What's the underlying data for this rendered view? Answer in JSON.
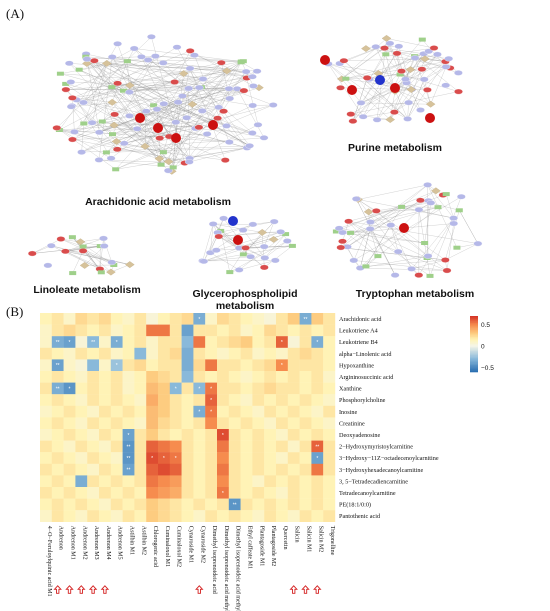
{
  "panels": {
    "a": "(A)",
    "b": "(B)"
  },
  "networks": [
    {
      "id": "arachidonic",
      "title": "Arachidonic acid metabolism"
    },
    {
      "id": "purine",
      "title": "Purine  metabolism"
    },
    {
      "id": "linoleate",
      "title": "Linoleate  metabolism"
    },
    {
      "id": "glycero",
      "title": "Glycerophospholipid\nmetabolism"
    },
    {
      "id": "tryptophan",
      "title": "Tryptophan metabolism"
    }
  ],
  "colors": {
    "metabolite_node": "#d94c4c",
    "gene_node": "#b5b8e8",
    "compound_node": "#d6c29a",
    "pathway_node": "#9fd08a",
    "hub_red": "#cc1111",
    "hub_blue": "#2233cc"
  },
  "chart_data": {
    "type": "heatmap",
    "rows": [
      "Arachidonic acid",
      "Leukotriene A4",
      "Leukotriene B4",
      "alpha−Linolenic acid",
      "Hypoxanthine",
      "Argininosuccinic acid",
      "Xanthine",
      "Phosphorylcholine",
      "Inosine",
      "Creatinine",
      "Deoxyadenosine",
      "2−Hydroxymyristoylcarnitine",
      "3−Hydroxy−11Z−octadecenoylcarnitine",
      "3−Hydroxyhexadecanoylcarnitine",
      "3, 5−Tetradecadiencarnitine",
      "Tetradecanoylcarnitine",
      "PE(18:1/0:0)",
      "Pantothenic acid"
    ],
    "columns": [
      "4−O−Feruloylquinic acid M1",
      "Andrenon",
      "Andrenon M1",
      "Andrenon M2",
      "Andrenon M3",
      "Andrenon M4",
      "Andrenon M5",
      "Astilbin M1",
      "Astilbin M2",
      "Chlorogenic acid",
      "Cuminaloxol M1",
      "Cuminaloxol M2",
      "Cynaroside M1",
      "Cynaroside M2",
      "Dimethyl isoprenoideic acid",
      "Dimethyl isoprenoideic acid methyl ester",
      "Dimethyl isoprenoideic acid methyl ester M1",
      "Ethyl caffeate M1",
      "Plantagoside M1",
      "Plantagoside M2",
      "Quercetin",
      "Salicin",
      "Salicin M1",
      "Salicin M2",
      "Trigonelline"
    ],
    "arrow_columns": [
      1,
      2,
      3,
      4,
      5,
      13,
      21,
      22,
      23
    ],
    "values": [
      [
        0.15,
        0.2,
        0.1,
        0.25,
        0.2,
        0.25,
        0.15,
        0.1,
        0.2,
        0.05,
        0.15,
        0.2,
        0.25,
        -0.35,
        0.1,
        0.25,
        0.2,
        0.15,
        0.1,
        0.05,
        0.2,
        0.3,
        -0.35,
        0.3,
        0.2
      ],
      [
        0.1,
        0.2,
        0.25,
        0.2,
        0.15,
        0.2,
        0.1,
        0.15,
        0.2,
        0.55,
        0.55,
        0.2,
        -0.4,
        0.2,
        0.2,
        0.15,
        0.2,
        0.1,
        0.15,
        0.25,
        0.2,
        0.15,
        0.2,
        0.15,
        0.2
      ],
      [
        0.1,
        -0.35,
        -0.4,
        0.05,
        -0.3,
        0.1,
        -0.35,
        0.15,
        0.2,
        0.1,
        0.2,
        0.2,
        -0.3,
        0.55,
        0.15,
        0.2,
        0.25,
        0.3,
        0.15,
        0.2,
        0.6,
        0.05,
        0.2,
        -0.35,
        0.15
      ],
      [
        0.2,
        0.15,
        0.1,
        0.2,
        0.15,
        0.2,
        0.1,
        0.15,
        -0.3,
        0.1,
        0.2,
        0.25,
        -0.35,
        0.2,
        0.15,
        0.1,
        0.15,
        0.2,
        0.1,
        0.15,
        0.1,
        0.2,
        0.25,
        0.2,
        0.15
      ],
      [
        0.1,
        -0.4,
        0.1,
        0.05,
        -0.3,
        0.1,
        -0.25,
        0.2,
        0.25,
        0.15,
        0.2,
        0.2,
        -0.35,
        0.25,
        0.55,
        0.2,
        0.2,
        0.15,
        0.2,
        0.25,
        0.5,
        0.2,
        0.2,
        0.2,
        0.15
      ],
      [
        0.15,
        0.2,
        0.15,
        0.1,
        0.2,
        0.15,
        0.2,
        0.1,
        0.15,
        0.3,
        0.25,
        0.2,
        -0.3,
        0.2,
        0.15,
        0.2,
        0.15,
        0.1,
        0.15,
        0.2,
        0.15,
        0.2,
        0.15,
        0.2,
        0.1
      ],
      [
        0.2,
        -0.35,
        -0.45,
        0.15,
        0.2,
        0.15,
        0.2,
        0.1,
        0.15,
        0.35,
        0.3,
        -0.3,
        0.2,
        -0.3,
        0.55,
        0.2,
        0.2,
        0.15,
        0.2,
        0.25,
        0.2,
        0.2,
        0.15,
        0.2,
        0.15
      ],
      [
        0.15,
        0.2,
        0.15,
        0.1,
        0.2,
        0.15,
        0.2,
        0.15,
        0.1,
        0.4,
        0.3,
        0.2,
        0.15,
        0.2,
        0.6,
        0.2,
        0.15,
        0.1,
        0.2,
        0.15,
        0.2,
        0.15,
        0.2,
        0.15,
        0.1
      ],
      [
        0.1,
        0.15,
        0.2,
        0.15,
        0.1,
        0.2,
        0.15,
        0.2,
        0.15,
        0.35,
        0.3,
        0.2,
        0.15,
        -0.35,
        0.55,
        0.15,
        0.2,
        0.15,
        0.1,
        0.2,
        0.15,
        0.2,
        0.15,
        0.1,
        0.2
      ],
      [
        0.15,
        0.2,
        0.15,
        0.1,
        0.2,
        0.15,
        0.2,
        0.15,
        0.1,
        0.35,
        0.25,
        0.2,
        0.15,
        0.2,
        0.5,
        0.2,
        0.15,
        0.2,
        0.15,
        0.1,
        0.2,
        0.15,
        0.2,
        0.15,
        0.1
      ],
      [
        0.1,
        0.15,
        0.2,
        0.15,
        0.1,
        0.2,
        0.15,
        -0.4,
        0.2,
        0.3,
        0.2,
        0.15,
        0.2,
        0.15,
        0.2,
        0.65,
        0.2,
        0.15,
        0.2,
        0.15,
        0.1,
        0.2,
        0.15,
        0.2,
        0.15
      ],
      [
        0.2,
        0.15,
        0.1,
        0.2,
        0.15,
        0.1,
        0.2,
        -0.45,
        0.2,
        0.6,
        0.55,
        0.5,
        0.2,
        0.15,
        0.2,
        0.55,
        0.2,
        0.15,
        0.2,
        0.15,
        0.2,
        0.1,
        0.2,
        0.6,
        0.2
      ],
      [
        0.15,
        0.2,
        0.15,
        0.1,
        0.2,
        0.15,
        0.1,
        -0.45,
        0.2,
        0.65,
        0.6,
        0.55,
        0.2,
        0.15,
        0.2,
        0.5,
        0.2,
        0.15,
        0.2,
        0.15,
        0.1,
        0.2,
        0.15,
        -0.4,
        0.2
      ],
      [
        0.2,
        0.15,
        0.2,
        0.15,
        0.1,
        0.2,
        0.15,
        -0.4,
        0.2,
        0.6,
        0.65,
        0.6,
        0.2,
        0.15,
        0.2,
        0.55,
        0.2,
        0.15,
        0.2,
        0.15,
        0.2,
        0.15,
        0.2,
        0.55,
        0.2
      ],
      [
        0.15,
        0.2,
        0.15,
        -0.35,
        0.2,
        0.15,
        0.2,
        0.15,
        0.2,
        0.55,
        0.5,
        0.45,
        0.2,
        0.15,
        0.2,
        0.5,
        0.2,
        0.15,
        0.1,
        0.2,
        0.15,
        0.2,
        0.15,
        0.2,
        0.15
      ],
      [
        0.2,
        0.15,
        0.2,
        0.15,
        0.1,
        0.2,
        0.15,
        0.2,
        0.15,
        0.5,
        0.45,
        0.4,
        0.2,
        0.15,
        0.2,
        0.55,
        0.2,
        0.15,
        0.2,
        0.15,
        0.1,
        0.2,
        0.15,
        0.2,
        0.15
      ],
      [
        0.15,
        0.2,
        0.15,
        0.2,
        0.15,
        0.1,
        0.2,
        0.15,
        0.2,
        0.3,
        0.25,
        0.2,
        0.15,
        0.2,
        0.15,
        0.2,
        -0.45,
        0.2,
        0.15,
        0.2,
        0.15,
        0.2,
        0.15,
        0.2,
        0.15
      ],
      [
        0.1,
        0.2,
        0.15,
        0.1,
        0.2,
        0.15,
        0.1,
        0.2,
        0.15,
        0.3,
        0.25,
        0.2,
        0.15,
        0.1,
        0.2,
        0.15,
        0.2,
        0.15,
        0.1,
        0.2,
        0.15,
        0.1,
        0.2,
        0.15,
        0.2
      ]
    ],
    "stars": [
      [
        0,
        22,
        "**"
      ],
      [
        0,
        13,
        "*"
      ],
      [
        2,
        1,
        "**"
      ],
      [
        2,
        2,
        "*"
      ],
      [
        2,
        4,
        "**"
      ],
      [
        2,
        6,
        "*"
      ],
      [
        2,
        20,
        "*"
      ],
      [
        2,
        23,
        "*"
      ],
      [
        4,
        1,
        "**"
      ],
      [
        4,
        6,
        "*"
      ],
      [
        4,
        20,
        "*"
      ],
      [
        6,
        1,
        "**"
      ],
      [
        6,
        2,
        "*"
      ],
      [
        6,
        11,
        "*"
      ],
      [
        6,
        13,
        "*"
      ],
      [
        6,
        14,
        "*"
      ],
      [
        7,
        14,
        "*"
      ],
      [
        8,
        13,
        "*"
      ],
      [
        8,
        14,
        "*"
      ],
      [
        10,
        7,
        "*"
      ],
      [
        10,
        15,
        "*"
      ],
      [
        11,
        7,
        "**"
      ],
      [
        11,
        23,
        "**"
      ],
      [
        12,
        7,
        "**"
      ],
      [
        12,
        9,
        "*"
      ],
      [
        12,
        10,
        "*"
      ],
      [
        12,
        11,
        "*"
      ],
      [
        12,
        23,
        "*"
      ],
      [
        13,
        7,
        "**"
      ],
      [
        15,
        15,
        "*"
      ],
      [
        16,
        16,
        "**"
      ]
    ],
    "colorbar": {
      "min": -0.6,
      "max": 0.7,
      "ticks": [
        0.5,
        0,
        -0.5
      ],
      "tick_labels": [
        "0.5",
        "0",
        "−0.5"
      ]
    }
  }
}
